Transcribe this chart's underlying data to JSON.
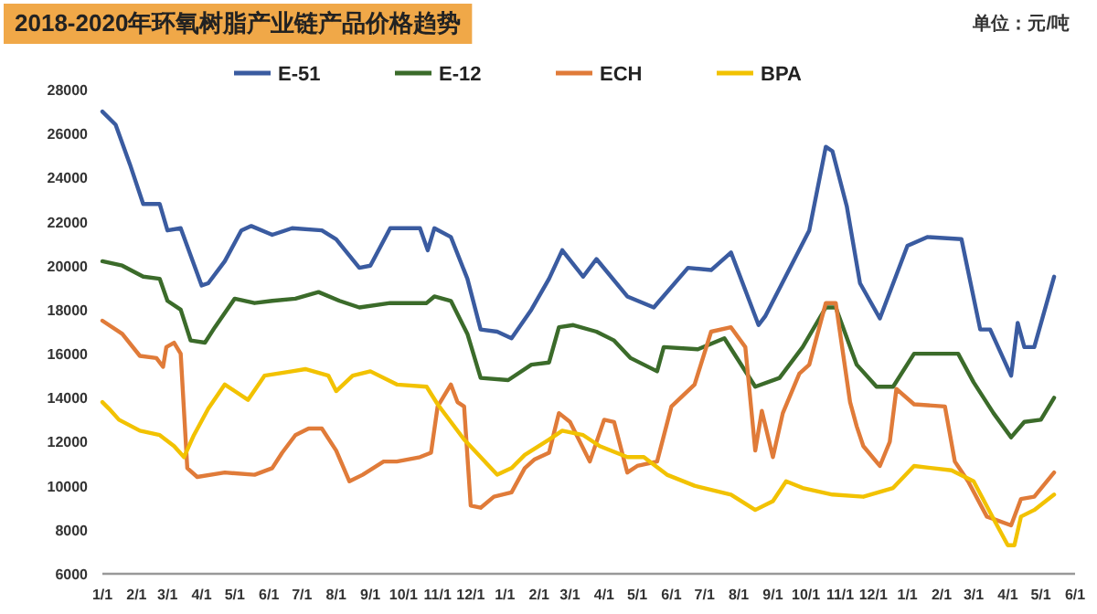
{
  "chart_data": {
    "type": "line",
    "title": "2018-2020年环氧树脂产业链产品价格趋势",
    "annotations": [
      "单位：元/吨"
    ],
    "legend": "top",
    "grid": false,
    "marker": "none",
    "line_style": "solid",
    "xlim": [
      "2018-01-01",
      "2020-06-01"
    ],
    "xticks": [
      {
        "value": "2018-01-01",
        "label": "1/1"
      },
      {
        "value": "2018-02-01",
        "label": "2/1"
      },
      {
        "value": "2018-03-01",
        "label": "3/1"
      },
      {
        "value": "2018-04-01",
        "label": "4/1"
      },
      {
        "value": "2018-05-01",
        "label": "5/1"
      },
      {
        "value": "2018-06-01",
        "label": "6/1"
      },
      {
        "value": "2018-07-01",
        "label": "7/1"
      },
      {
        "value": "2018-08-01",
        "label": "8/1"
      },
      {
        "value": "2018-09-01",
        "label": "9/1"
      },
      {
        "value": "2018-10-01",
        "label": "10/1"
      },
      {
        "value": "2018-11-01",
        "label": "11/1"
      },
      {
        "value": "2018-12-01",
        "label": "12/1"
      },
      {
        "value": "2019-01-01",
        "label": "1/1"
      },
      {
        "value": "2019-02-01",
        "label": "2/1"
      },
      {
        "value": "2019-03-01",
        "label": "3/1"
      },
      {
        "value": "2019-04-01",
        "label": "4/1"
      },
      {
        "value": "2019-05-01",
        "label": "5/1"
      },
      {
        "value": "2019-06-01",
        "label": "6/1"
      },
      {
        "value": "2019-07-01",
        "label": "7/1"
      },
      {
        "value": "2019-08-01",
        "label": "8/1"
      },
      {
        "value": "2019-09-01",
        "label": "9/1"
      },
      {
        "value": "2019-10-01",
        "label": "10/1"
      },
      {
        "value": "2019-11-01",
        "label": "11/1"
      },
      {
        "value": "2019-12-01",
        "label": "12/1"
      },
      {
        "value": "2020-01-01",
        "label": "1/1"
      },
      {
        "value": "2020-02-01",
        "label": "2/1"
      },
      {
        "value": "2020-03-01",
        "label": "3/1"
      },
      {
        "value": "2020-04-01",
        "label": "4/1"
      },
      {
        "value": "2020-05-01",
        "label": "5/1"
      },
      {
        "value": "2020-06-01",
        "label": "6/1"
      }
    ],
    "ylim": [
      6000,
      28000
    ],
    "yticks": [
      6000,
      8000,
      10000,
      12000,
      14000,
      16000,
      18000,
      20000,
      22000,
      24000,
      26000,
      28000
    ],
    "series": [
      {
        "name": "E-51",
        "color": "#3a5ba0",
        "x": [
          "2018-01-01",
          "2018-01-13",
          "2018-01-26",
          "2018-02-07",
          "2018-02-22",
          "2018-03-01",
          "2018-03-13",
          "2018-04-01",
          "2018-04-07",
          "2018-04-22",
          "2018-05-07",
          "2018-05-16",
          "2018-06-04",
          "2018-06-22",
          "2018-07-19",
          "2018-08-01",
          "2018-08-22",
          "2018-09-01",
          "2018-09-19",
          "2018-10-16",
          "2018-10-23",
          "2018-10-29",
          "2018-11-13",
          "2018-11-28",
          "2018-12-10",
          "2018-12-25",
          "2019-01-07",
          "2019-01-25",
          "2019-02-10",
          "2019-02-22",
          "2019-03-13",
          "2019-03-25",
          "2019-04-22",
          "2019-05-16",
          "2019-06-16",
          "2019-07-07",
          "2019-07-25",
          "2019-08-19",
          "2019-08-25",
          "2019-10-04",
          "2019-10-19",
          "2019-10-25",
          "2019-11-07",
          "2019-11-19",
          "2019-12-07",
          "2020-01-01",
          "2020-01-19",
          "2020-02-19",
          "2020-03-07",
          "2020-03-16",
          "2020-04-04",
          "2020-04-10",
          "2020-04-16",
          "2020-04-25",
          "2020-05-13"
        ],
        "values": [
          27000,
          26400,
          24600,
          22800,
          22800,
          21600,
          21700,
          19100,
          19200,
          20200,
          21600,
          21800,
          21400,
          21700,
          21600,
          21200,
          19900,
          20000,
          21700,
          21700,
          20700,
          21700,
          21300,
          19400,
          17100,
          17000,
          16700,
          18000,
          19400,
          20700,
          19500,
          20300,
          18600,
          18100,
          19900,
          19800,
          20600,
          17300,
          17700,
          21600,
          25400,
          25200,
          22700,
          19200,
          17600,
          20900,
          21300,
          21200,
          17100,
          17100,
          15000,
          17400,
          16300,
          16300,
          19500
        ]
      },
      {
        "name": "E-12",
        "color": "#3b6b2a",
        "x": [
          "2018-01-01",
          "2018-01-19",
          "2018-02-07",
          "2018-02-22",
          "2018-03-01",
          "2018-03-13",
          "2018-03-22",
          "2018-04-04",
          "2018-04-13",
          "2018-05-01",
          "2018-05-19",
          "2018-06-04",
          "2018-06-25",
          "2018-07-16",
          "2018-08-04",
          "2018-08-22",
          "2018-09-19",
          "2018-10-22",
          "2018-10-29",
          "2018-11-13",
          "2018-11-28",
          "2018-12-10",
          "2019-01-04",
          "2019-01-25",
          "2019-02-10",
          "2019-02-19",
          "2019-03-04",
          "2019-03-25",
          "2019-04-10",
          "2019-04-25",
          "2019-05-19",
          "2019-05-25",
          "2019-06-25",
          "2019-07-19",
          "2019-08-16",
          "2019-09-07",
          "2019-09-28",
          "2019-10-19",
          "2019-10-28",
          "2019-11-16",
          "2019-12-04",
          "2019-12-19",
          "2020-01-07",
          "2020-02-16",
          "2020-03-01",
          "2020-03-19",
          "2020-04-04",
          "2020-04-16",
          "2020-05-01",
          "2020-05-13"
        ],
        "values": [
          20200,
          20000,
          19500,
          19400,
          18400,
          18000,
          16600,
          16500,
          17200,
          18500,
          18300,
          18400,
          18500,
          18800,
          18400,
          18100,
          18300,
          18300,
          18600,
          18400,
          16900,
          14900,
          14800,
          15500,
          15600,
          17200,
          17300,
          17000,
          16600,
          15800,
          15200,
          16300,
          16200,
          16700,
          14500,
          14900,
          16300,
          18100,
          18100,
          15500,
          14500,
          14500,
          16000,
          16000,
          14700,
          13300,
          12200,
          12900,
          13000,
          14000
        ]
      },
      {
        "name": "ECH",
        "color": "#e07b39",
        "x": [
          "2018-01-01",
          "2018-01-19",
          "2018-02-04",
          "2018-02-19",
          "2018-02-25",
          "2018-02-28",
          "2018-03-07",
          "2018-03-13",
          "2018-03-19",
          "2018-03-28",
          "2018-04-22",
          "2018-05-19",
          "2018-06-04",
          "2018-06-13",
          "2018-06-25",
          "2018-07-07",
          "2018-07-19",
          "2018-08-01",
          "2018-08-13",
          "2018-08-25",
          "2018-09-13",
          "2018-09-25",
          "2018-10-16",
          "2018-10-26",
          "2018-11-01",
          "2018-11-13",
          "2018-11-19",
          "2018-11-25",
          "2018-12-01",
          "2018-12-10",
          "2018-12-22",
          "2019-01-07",
          "2019-01-19",
          "2019-01-28",
          "2019-02-10",
          "2019-02-19",
          "2019-03-01",
          "2019-03-19",
          "2019-04-01",
          "2019-04-10",
          "2019-04-22",
          "2019-05-01",
          "2019-05-19",
          "2019-06-01",
          "2019-06-22",
          "2019-07-07",
          "2019-07-25",
          "2019-08-07",
          "2019-08-16",
          "2019-08-22",
          "2019-09-01",
          "2019-09-10",
          "2019-09-25",
          "2019-10-04",
          "2019-10-19",
          "2019-10-28",
          "2019-11-10",
          "2019-11-16",
          "2019-11-22",
          "2019-12-07",
          "2019-12-16",
          "2019-12-22",
          "2020-01-07",
          "2020-02-04",
          "2020-02-13",
          "2020-02-25",
          "2020-03-13",
          "2020-04-04",
          "2020-04-13",
          "2020-04-25",
          "2020-05-13"
        ],
        "values": [
          17500,
          16900,
          15900,
          15800,
          15400,
          16300,
          16500,
          16000,
          10800,
          10400,
          10600,
          10500,
          10800,
          11500,
          12300,
          12600,
          12600,
          11600,
          10200,
          10500,
          11100,
          11100,
          11300,
          11500,
          13600,
          14600,
          13800,
          13600,
          9100,
          9000,
          9500,
          9700,
          10800,
          11200,
          11500,
          13300,
          12900,
          11100,
          13000,
          12900,
          10600,
          10900,
          11100,
          13600,
          14600,
          17000,
          17200,
          16300,
          11600,
          13400,
          11300,
          13300,
          15100,
          15500,
          18300,
          18300,
          13800,
          12700,
          11800,
          10900,
          12000,
          14400,
          13700,
          13600,
          11100,
          10200,
          8600,
          8200,
          9400,
          9500,
          10600
        ]
      },
      {
        "name": "BPA",
        "color": "#f2c200",
        "x": [
          "2018-01-01",
          "2018-01-07",
          "2018-01-16",
          "2018-02-04",
          "2018-02-22",
          "2018-03-07",
          "2018-03-16",
          "2018-03-25",
          "2018-04-07",
          "2018-04-22",
          "2018-05-01",
          "2018-05-13",
          "2018-05-28",
          "2018-06-22",
          "2018-07-04",
          "2018-07-25",
          "2018-08-01",
          "2018-08-16",
          "2018-09-01",
          "2018-09-25",
          "2018-10-22",
          "2018-11-01",
          "2018-11-25",
          "2018-12-10",
          "2018-12-25",
          "2019-01-07",
          "2019-01-19",
          "2019-02-10",
          "2019-02-22",
          "2019-03-13",
          "2019-03-28",
          "2019-04-22",
          "2019-05-07",
          "2019-05-28",
          "2019-06-22",
          "2019-07-25",
          "2019-08-16",
          "2019-09-01",
          "2019-09-13",
          "2019-09-28",
          "2019-10-25",
          "2019-11-22",
          "2019-12-19",
          "2020-01-07",
          "2020-02-10",
          "2020-03-01",
          "2020-03-19",
          "2020-04-01",
          "2020-04-07",
          "2020-04-13",
          "2020-04-25",
          "2020-05-13"
        ],
        "values": [
          13800,
          13500,
          13000,
          12500,
          12300,
          11800,
          11300,
          12300,
          13500,
          14600,
          14300,
          13900,
          15000,
          15200,
          15300,
          15000,
          14300,
          15000,
          15200,
          14600,
          14500,
          13700,
          12100,
          11300,
          10500,
          10800,
          11400,
          12100,
          12500,
          12300,
          11800,
          11300,
          11300,
          10500,
          10000,
          9600,
          8900,
          9300,
          10200,
          9900,
          9600,
          9500,
          9900,
          10900,
          10700,
          10200,
          8500,
          7300,
          7300,
          8600,
          8900,
          9600
        ]
      }
    ]
  }
}
